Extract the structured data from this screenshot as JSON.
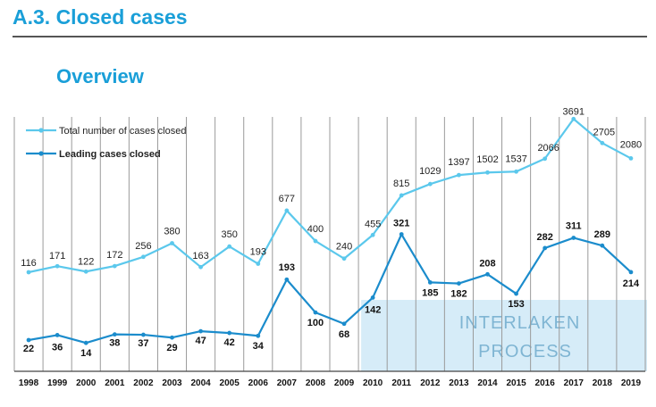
{
  "section_title": "A.3. Closed cases",
  "subtitle": "Overview",
  "watermark": {
    "line1": "INTERLAKEN",
    "line2": "PROCESS"
  },
  "colors": {
    "accent": "#1a9fd8",
    "total": "#5bc8ec",
    "leading": "#1b8ccc",
    "watermark_bg": "#d6ecf8"
  },
  "chart_data": {
    "type": "line",
    "categories": [
      "1998",
      "1999",
      "2000",
      "2001",
      "2002",
      "2003",
      "2004",
      "2005",
      "2006",
      "2007",
      "2008",
      "2009",
      "2010",
      "2011",
      "2012",
      "2013",
      "2014",
      "2015",
      "2016",
      "2017",
      "2018",
      "2019"
    ],
    "series": [
      {
        "name": "Total number of cases closed",
        "values": [
          116,
          171,
          122,
          172,
          256,
          380,
          163,
          350,
          193,
          677,
          400,
          240,
          455,
          815,
          1029,
          1397,
          1502,
          1537,
          2066,
          3691,
          2705,
          2080
        ]
      },
      {
        "name": "Leading cases closed",
        "values": [
          22,
          36,
          14,
          38,
          37,
          29,
          47,
          42,
          34,
          193,
          100,
          68,
          142,
          321,
          185,
          182,
          208,
          153,
          282,
          311,
          289,
          214
        ]
      }
    ],
    "legend": "top-left",
    "grid": "vertical"
  }
}
